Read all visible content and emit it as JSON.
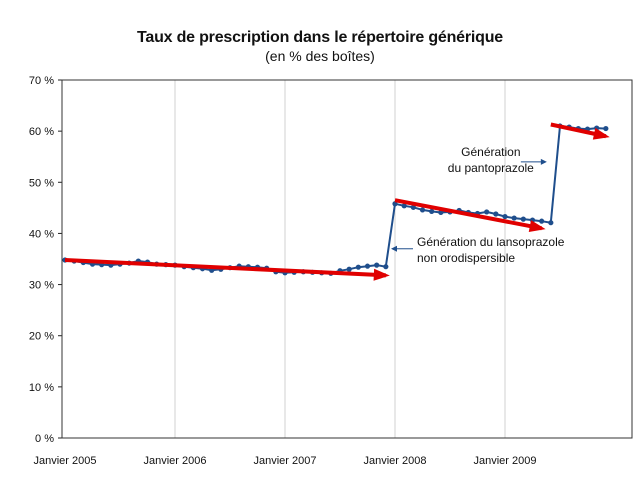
{
  "chart_data": {
    "type": "line",
    "title": "Taux de prescription dans le répertoire générique",
    "subtitle": "(en % des boîtes)",
    "xlabel": "",
    "ylabel": "",
    "ylim": [
      0,
      70
    ],
    "yticks": [
      "0 %",
      "10 %",
      "20 %",
      "30 %",
      "40 %",
      "50 %",
      "60 %",
      "70 %"
    ],
    "xticks": [
      "Janvier 2005",
      "Janvier 2006",
      "Janvier 2007",
      "Janvier 2008",
      "Janvier 2009"
    ],
    "grid": "vertical",
    "series": [
      {
        "color": "#1f4e8c",
        "x": [
          "2005-01",
          "2005-02",
          "2005-03",
          "2005-04",
          "2005-05",
          "2005-06",
          "2005-07",
          "2005-08",
          "2005-09",
          "2005-10",
          "2005-11",
          "2005-12",
          "2006-01",
          "2006-02",
          "2006-03",
          "2006-04",
          "2006-05",
          "2006-06",
          "2006-07",
          "2006-08",
          "2006-09",
          "2006-10",
          "2006-11",
          "2006-12",
          "2007-01",
          "2007-02",
          "2007-03",
          "2007-04",
          "2007-05",
          "2007-06",
          "2007-07",
          "2007-08",
          "2007-09",
          "2007-10",
          "2007-11",
          "2007-12",
          "2008-01",
          "2008-02",
          "2008-03",
          "2008-04",
          "2008-05",
          "2008-06",
          "2008-07",
          "2008-08",
          "2008-09",
          "2008-10",
          "2008-11",
          "2008-12",
          "2009-01",
          "2009-02",
          "2009-03",
          "2009-04",
          "2009-05",
          "2009-06",
          "2009-07",
          "2009-08",
          "2009-09",
          "2009-10",
          "2009-11",
          "2009-12"
        ],
        "values": [
          34.8,
          34.6,
          34.3,
          34.0,
          33.9,
          33.8,
          34.0,
          34.2,
          34.6,
          34.4,
          34.0,
          33.9,
          33.8,
          33.5,
          33.3,
          33.1,
          32.8,
          33.0,
          33.3,
          33.6,
          33.5,
          33.4,
          33.2,
          32.5,
          32.3,
          32.4,
          32.5,
          32.4,
          32.3,
          32.2,
          32.7,
          33.0,
          33.4,
          33.6,
          33.8,
          33.5,
          45.8,
          45.4,
          45.1,
          44.6,
          44.3,
          44.1,
          44.2,
          44.5,
          44.1,
          43.9,
          44.2,
          43.8,
          43.3,
          43.0,
          42.8,
          42.6,
          42.4,
          42.1,
          61.0,
          60.8,
          60.5,
          60.4,
          60.6,
          60.5
        ]
      }
    ],
    "trend_lines": [
      {
        "color": "#e00000",
        "x": [
          "2005-01",
          "2007-12"
        ],
        "values": [
          34.8,
          31.8
        ]
      },
      {
        "color": "#e00000",
        "x": [
          "2008-01",
          "2009-05"
        ],
        "values": [
          46.5,
          41.0
        ]
      },
      {
        "color": "#e00000",
        "x": [
          "2009-06",
          "2009-12"
        ],
        "values": [
          61.3,
          59.0
        ]
      }
    ],
    "annotations": [
      {
        "lines": [
          "Génération",
          "du pantoprazole"
        ],
        "x": "2009-06",
        "y": 54
      },
      {
        "lines": [
          "Génération du lansoprazole",
          "non orodispersible"
        ],
        "x": "2008-01",
        "y": 37
      }
    ]
  }
}
